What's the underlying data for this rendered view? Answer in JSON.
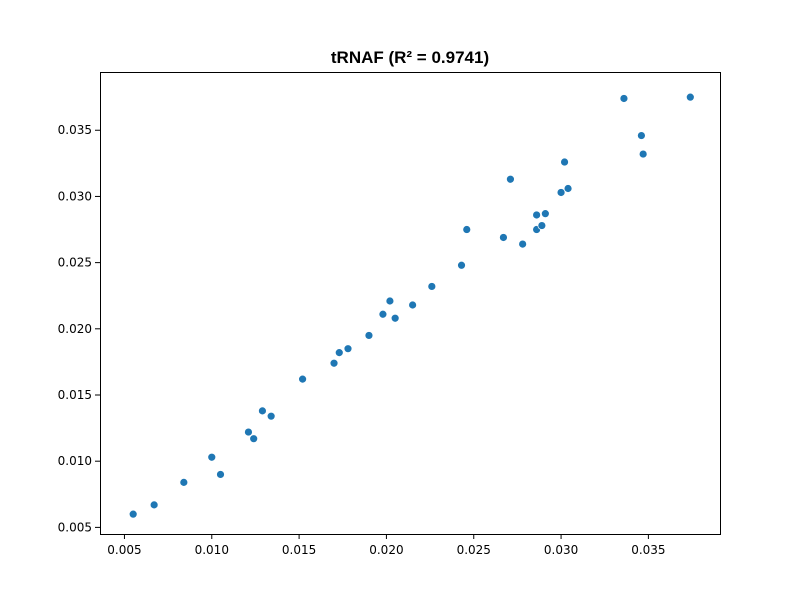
{
  "chart_data": {
    "type": "scatter",
    "title": "tRNAF (R² = 0.9741)",
    "xlabel": "",
    "ylabel": "",
    "xlim": [
      0.0036,
      0.0391
    ],
    "ylim": [
      0.0045,
      0.0394
    ],
    "x_ticks": [
      0.005,
      0.01,
      0.015,
      0.02,
      0.025,
      0.03,
      0.035
    ],
    "y_ticks": [
      0.005,
      0.01,
      0.015,
      0.02,
      0.025,
      0.03,
      0.035
    ],
    "x_tick_labels": [
      "0.005",
      "0.010",
      "0.015",
      "0.020",
      "0.025",
      "0.030",
      "0.035"
    ],
    "y_tick_labels": [
      "0.005",
      "0.010",
      "0.015",
      "0.020",
      "0.025",
      "0.030",
      "0.035"
    ],
    "grid": false,
    "color": "#1f77b4",
    "points": [
      {
        "x": 0.0055,
        "y": 0.006
      },
      {
        "x": 0.0067,
        "y": 0.0067
      },
      {
        "x": 0.0084,
        "y": 0.0084
      },
      {
        "x": 0.01,
        "y": 0.0103
      },
      {
        "x": 0.0105,
        "y": 0.009
      },
      {
        "x": 0.0121,
        "y": 0.0122
      },
      {
        "x": 0.0124,
        "y": 0.0117
      },
      {
        "x": 0.0129,
        "y": 0.0138
      },
      {
        "x": 0.0134,
        "y": 0.0134
      },
      {
        "x": 0.0152,
        "y": 0.0162
      },
      {
        "x": 0.017,
        "y": 0.0174
      },
      {
        "x": 0.0173,
        "y": 0.0182
      },
      {
        "x": 0.0178,
        "y": 0.0185
      },
      {
        "x": 0.019,
        "y": 0.0195
      },
      {
        "x": 0.0198,
        "y": 0.0211
      },
      {
        "x": 0.0202,
        "y": 0.0221
      },
      {
        "x": 0.0205,
        "y": 0.0208
      },
      {
        "x": 0.0215,
        "y": 0.0218
      },
      {
        "x": 0.0226,
        "y": 0.0232
      },
      {
        "x": 0.0243,
        "y": 0.0248
      },
      {
        "x": 0.0246,
        "y": 0.0275
      },
      {
        "x": 0.0267,
        "y": 0.0269
      },
      {
        "x": 0.0271,
        "y": 0.0313
      },
      {
        "x": 0.0278,
        "y": 0.0264
      },
      {
        "x": 0.0286,
        "y": 0.0275
      },
      {
        "x": 0.0286,
        "y": 0.0286
      },
      {
        "x": 0.0289,
        "y": 0.0278
      },
      {
        "x": 0.0291,
        "y": 0.0287
      },
      {
        "x": 0.03,
        "y": 0.0303
      },
      {
        "x": 0.0302,
        "y": 0.0326
      },
      {
        "x": 0.0304,
        "y": 0.0306
      },
      {
        "x": 0.0336,
        "y": 0.0374
      },
      {
        "x": 0.0346,
        "y": 0.0346
      },
      {
        "x": 0.0347,
        "y": 0.0332
      },
      {
        "x": 0.0374,
        "y": 0.0375
      }
    ]
  }
}
